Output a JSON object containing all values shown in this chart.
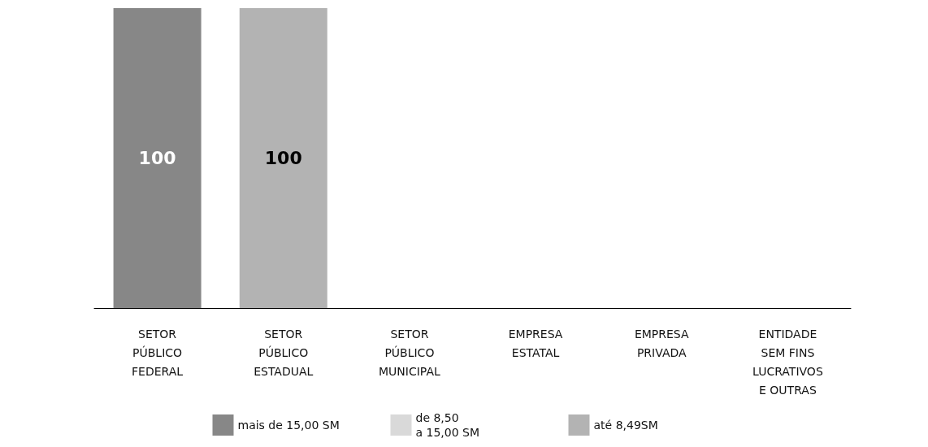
{
  "chart_data": {
    "type": "bar",
    "stacked": true,
    "data_labels": true,
    "legend": "bottom",
    "categories": [
      "SETOR\nPÚBLICO\nFEDERAL",
      "SETOR\nPÚBLICO\nESTADUAL",
      "SETOR\nPÚBLICO\nMUNICIPAL",
      "EMPRESA\nESTATAL",
      "EMPRESA\nPRIVADA",
      "ENTIDADE\nSEM FINS\nLUCRATIVOS\nE OUTRAS"
    ],
    "ylim": [
      0,
      100
    ],
    "series": [
      {
        "name": "mais de 15,00 SM",
        "color": "#878787",
        "values": [
          100,
          null,
          null,
          null,
          null,
          null
        ]
      },
      {
        "name": "de 8,50\na 15,00 SM",
        "color": "#d9d9d9",
        "values": [
          null,
          null,
          null,
          null,
          null,
          null
        ]
      },
      {
        "name": "até 8,49SM",
        "color": "#b3b3b3",
        "values": [
          null,
          100,
          null,
          null,
          null,
          null
        ]
      }
    ]
  }
}
